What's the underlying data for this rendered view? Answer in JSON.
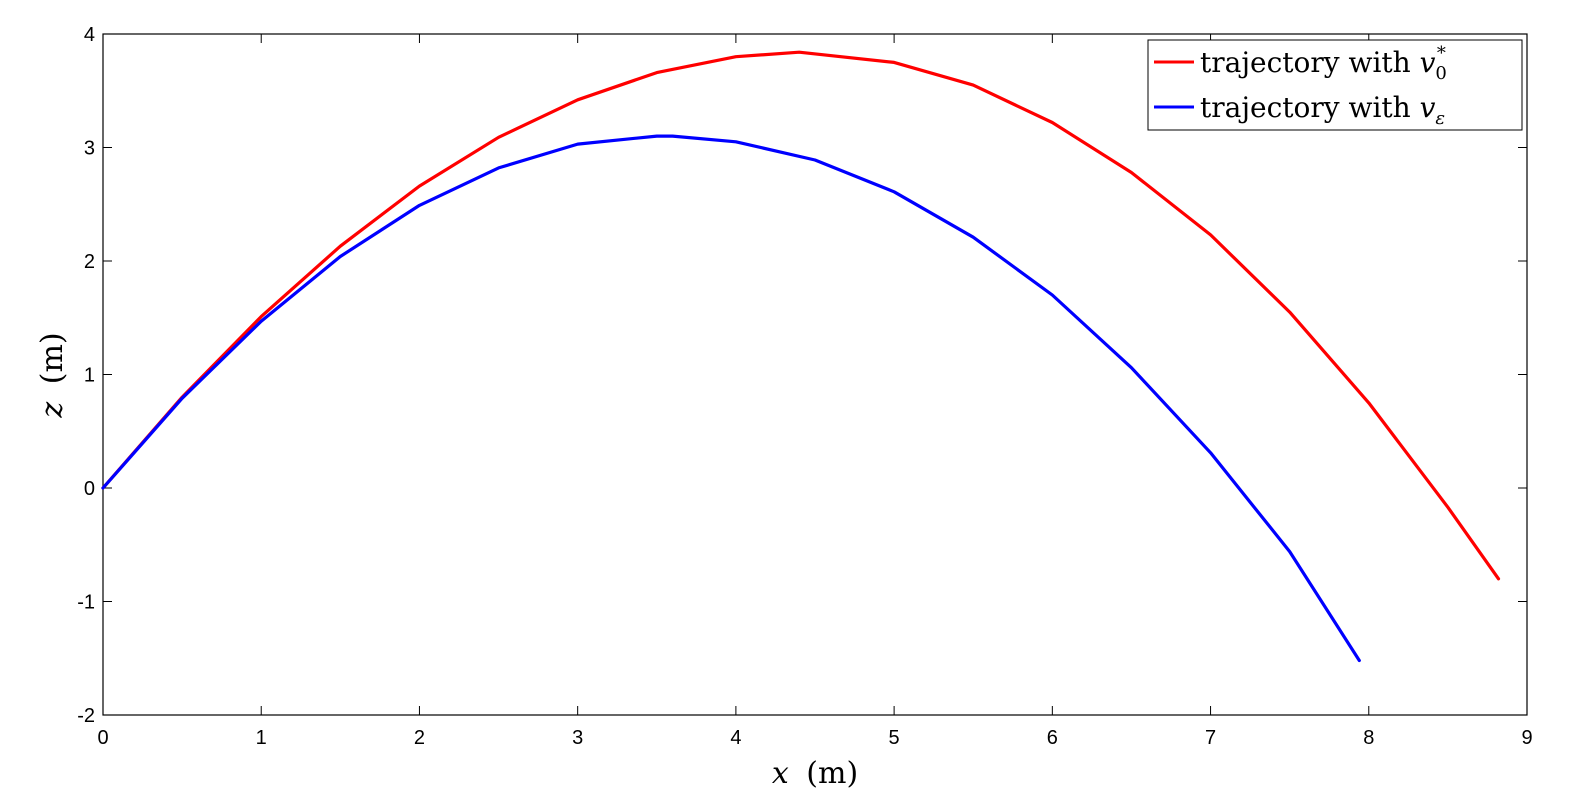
{
  "chart_data": {
    "type": "line",
    "title": "",
    "xlabel": {
      "var": "x",
      "unit": "(m)"
    },
    "ylabel": {
      "var": "z",
      "unit": "(m)"
    },
    "xlim": [
      0,
      9
    ],
    "ylim": [
      -2,
      4
    ],
    "xticks": [
      "0",
      "1",
      "2",
      "3",
      "4",
      "5",
      "6",
      "7",
      "8",
      "9"
    ],
    "yticks": [
      "-2",
      "-1",
      "0",
      "1",
      "2",
      "3",
      "4"
    ],
    "grid": false,
    "legend_position": "top-right",
    "series": [
      {
        "name": "trajectory with v0*",
        "legend": {
          "prefix": "trajectory with ",
          "var": "v",
          "sub": "0",
          "sup": "*"
        },
        "color": "#ff0000",
        "x": [
          0,
          0.5,
          1.0,
          1.5,
          2.0,
          2.5,
          3.0,
          3.5,
          4.0,
          4.4,
          5.0,
          5.5,
          6.0,
          6.5,
          7.0,
          7.5,
          8.0,
          8.5,
          8.82
        ],
        "y": [
          0,
          0.8,
          1.51,
          2.13,
          2.66,
          3.09,
          3.42,
          3.66,
          3.8,
          3.84,
          3.75,
          3.55,
          3.22,
          2.78,
          2.23,
          1.55,
          0.75,
          -0.17,
          -0.8
        ]
      },
      {
        "name": "trajectory with vε",
        "legend": {
          "prefix": "trajectory with ",
          "var": "v",
          "sub": "ε",
          "sup": ""
        },
        "color": "#0000ff",
        "x": [
          0,
          0.5,
          1.0,
          1.5,
          2.0,
          2.5,
          3.0,
          3.5,
          3.6,
          4.0,
          4.5,
          5.0,
          5.5,
          6.0,
          6.5,
          7.0,
          7.5,
          7.94
        ],
        "y": [
          0,
          0.79,
          1.47,
          2.04,
          2.49,
          2.82,
          3.03,
          3.1,
          3.1,
          3.05,
          2.89,
          2.61,
          2.21,
          1.7,
          1.06,
          0.31,
          -0.56,
          -1.52
        ]
      }
    ]
  }
}
